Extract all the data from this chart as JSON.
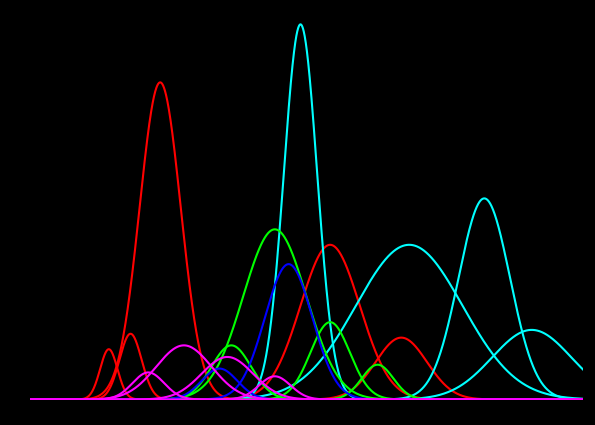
{
  "background_color": "#000000",
  "xlim": [
    0,
    14
  ],
  "ylim": [
    0,
    1.0
  ],
  "figsize": [
    5.95,
    4.25
  ],
  "dpi": 100,
  "linewidth": 1.5,
  "species": [
    {
      "color": "#ff0000",
      "mu": 3.3,
      "sigma": 0.52,
      "amplitude": 0.82
    },
    {
      "color": "#ff0000",
      "mu": 2.0,
      "sigma": 0.22,
      "amplitude": 0.13
    },
    {
      "color": "#ff0000",
      "mu": 2.55,
      "sigma": 0.28,
      "amplitude": 0.17
    },
    {
      "color": "#ff0000",
      "mu": 7.6,
      "sigma": 0.75,
      "amplitude": 0.4
    },
    {
      "color": "#ff0000",
      "mu": 9.4,
      "sigma": 0.65,
      "amplitude": 0.16
    },
    {
      "color": "#00ffff",
      "mu": 6.85,
      "sigma": 0.42,
      "amplitude": 0.97
    },
    {
      "color": "#00ffff",
      "mu": 9.6,
      "sigma": 1.35,
      "amplitude": 0.4
    },
    {
      "color": "#00ffff",
      "mu": 11.5,
      "sigma": 0.65,
      "amplitude": 0.52
    },
    {
      "color": "#00ffff",
      "mu": 12.7,
      "sigma": 1.0,
      "amplitude": 0.18
    },
    {
      "color": "#00ff00",
      "mu": 6.2,
      "sigma": 0.8,
      "amplitude": 0.44
    },
    {
      "color": "#00ff00",
      "mu": 7.6,
      "sigma": 0.5,
      "amplitude": 0.2
    },
    {
      "color": "#00ff00",
      "mu": 5.1,
      "sigma": 0.5,
      "amplitude": 0.14
    },
    {
      "color": "#00ff00",
      "mu": 8.8,
      "sigma": 0.4,
      "amplitude": 0.09
    },
    {
      "color": "#0000ff",
      "mu": 6.55,
      "sigma": 0.6,
      "amplitude": 0.35
    },
    {
      "color": "#0000ff",
      "mu": 4.8,
      "sigma": 0.45,
      "amplitude": 0.08
    },
    {
      "color": "#ff00ff",
      "mu": 3.9,
      "sigma": 0.7,
      "amplitude": 0.14
    },
    {
      "color": "#ff00ff",
      "mu": 5.0,
      "sigma": 0.65,
      "amplitude": 0.11
    },
    {
      "color": "#ff00ff",
      "mu": 3.0,
      "sigma": 0.4,
      "amplitude": 0.07
    },
    {
      "color": "#ff00ff",
      "mu": 6.2,
      "sigma": 0.4,
      "amplitude": 0.06
    }
  ]
}
